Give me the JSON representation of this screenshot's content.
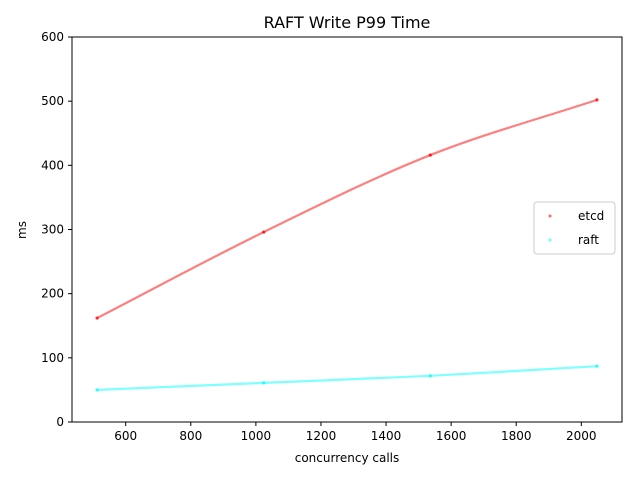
{
  "chart_data": {
    "type": "line",
    "title": "RAFT Write P99 Time",
    "xlabel": "concurrency calls",
    "ylabel": "ms",
    "xlim": [
      435,
      2125
    ],
    "ylim": [
      0,
      600
    ],
    "x_ticks": [
      600,
      800,
      1000,
      1200,
      1400,
      1600,
      1800,
      2000
    ],
    "y_ticks": [
      0,
      100,
      200,
      300,
      400,
      500,
      600
    ],
    "grid": false,
    "legend_position": "center-right",
    "x": [
      512,
      1024,
      1536,
      2048
    ],
    "series": [
      {
        "name": "etcd",
        "values": [
          162,
          296,
          416,
          502
        ],
        "color": "#ff0000",
        "line_color": "#ff7f7f"
      },
      {
        "name": "raft",
        "values": [
          50,
          61,
          72,
          87
        ],
        "color": "#00ffff",
        "line_color": "#7fffff"
      }
    ]
  }
}
